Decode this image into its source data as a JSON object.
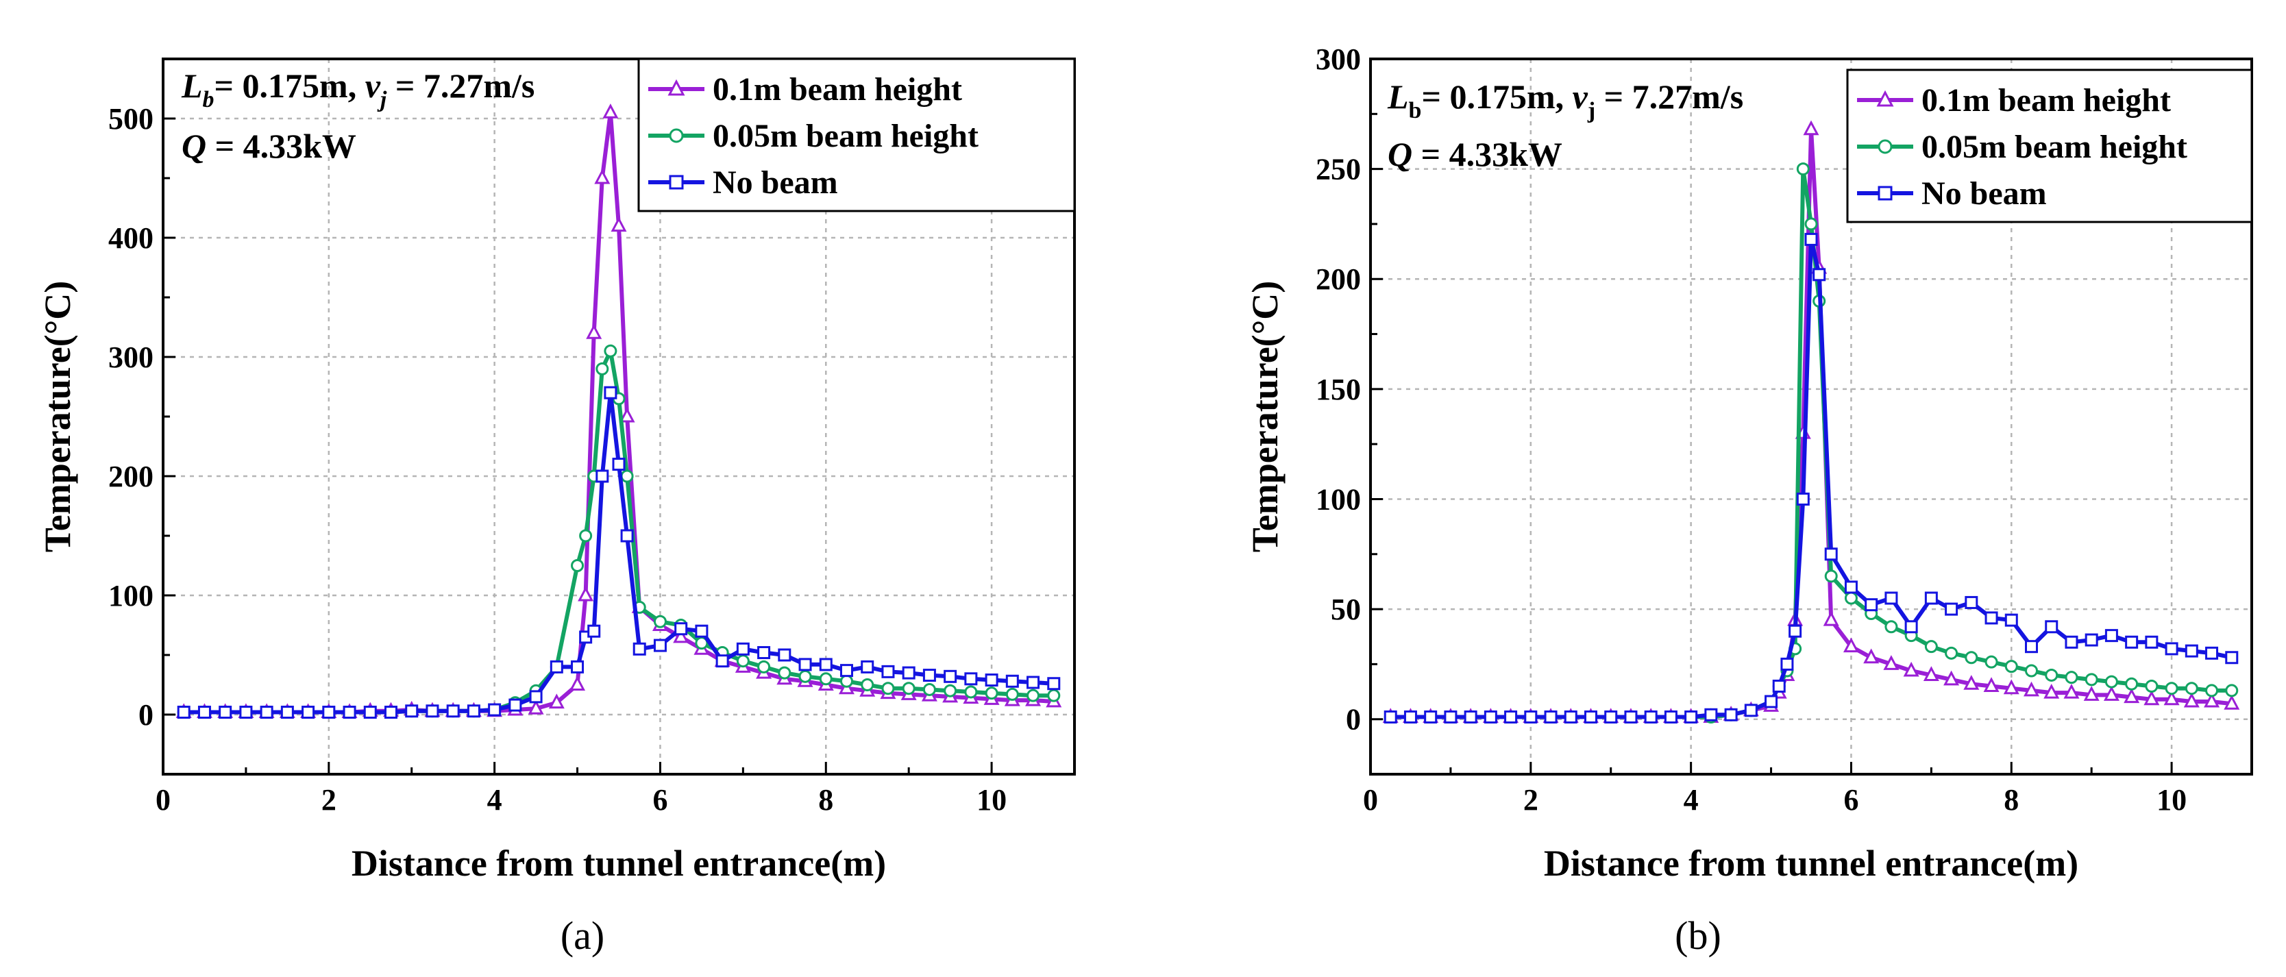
{
  "chart_data": [
    {
      "type": "line",
      "caption": "(a)",
      "xlabel": "Distance from tunnel entrance(m)",
      "ylabel": "Temperature(°C)",
      "xlim": [
        0,
        11
      ],
      "ylim": [
        -50,
        550
      ],
      "xticks": [
        0,
        2,
        4,
        6,
        8,
        10
      ],
      "yticks": [
        0,
        100,
        200,
        300,
        400,
        500
      ],
      "grid": true,
      "legend_position": "top-right",
      "annotation_line1": {
        "L": "L",
        "sub_b": "b",
        "eq1": "= 0.175m, ",
        "v": "v",
        "sub_j": "j",
        "eq2": " = 7.27m/s"
      },
      "annotation_line2": {
        "Q": "Q",
        "eq": " = 4.33kW"
      },
      "x": [
        0.25,
        0.5,
        0.75,
        1.0,
        1.25,
        1.5,
        1.75,
        2.0,
        2.25,
        2.5,
        2.75,
        3.0,
        3.25,
        3.5,
        3.75,
        4.0,
        4.25,
        4.5,
        4.75,
        5.0,
        5.1,
        5.2,
        5.3,
        5.4,
        5.5,
        5.6,
        5.75,
        6.0,
        6.25,
        6.5,
        6.75,
        7.0,
        7.25,
        7.5,
        7.75,
        8.0,
        8.25,
        8.5,
        8.75,
        9.0,
        9.25,
        9.5,
        9.75,
        10.0,
        10.25,
        10.5,
        10.75
      ],
      "series": [
        {
          "name": "0.1m beam height",
          "color": "#9A1FD6",
          "marker": "triangle",
          "values": [
            2,
            2,
            2,
            2,
            2,
            2,
            2,
            2,
            2,
            3,
            3,
            4,
            3,
            3,
            3,
            3,
            4,
            5,
            10,
            25,
            100,
            320,
            450,
            505,
            410,
            250,
            90,
            75,
            65,
            55,
            45,
            40,
            35,
            30,
            28,
            25,
            22,
            20,
            18,
            17,
            16,
            15,
            14,
            13,
            12,
            12,
            11
          ]
        },
        {
          "name": "0.05m beam height",
          "color": "#13A463",
          "marker": "circle",
          "values": [
            2,
            2,
            2,
            2,
            2,
            2,
            2,
            2,
            2,
            2,
            2,
            3,
            3,
            3,
            3,
            4,
            10,
            20,
            40,
            125,
            150,
            200,
            290,
            305,
            265,
            200,
            90,
            78,
            75,
            60,
            52,
            45,
            40,
            35,
            32,
            30,
            28,
            25,
            22,
            22,
            21,
            20,
            19,
            18,
            17,
            16,
            16
          ]
        },
        {
          "name": "No beam",
          "color": "#1414E0",
          "marker": "square",
          "values": [
            2,
            2,
            2,
            2,
            2,
            2,
            2,
            2,
            2,
            2,
            2,
            3,
            3,
            3,
            3,
            4,
            8,
            15,
            40,
            40,
            65,
            70,
            200,
            270,
            210,
            150,
            55,
            58,
            72,
            70,
            45,
            55,
            52,
            50,
            42,
            42,
            37,
            40,
            36,
            35,
            33,
            32,
            30,
            29,
            28,
            27,
            26
          ]
        }
      ]
    },
    {
      "type": "line",
      "caption": "(b)",
      "xlabel": "Distance from tunnel entrance(m)",
      "ylabel": "Temperature(°C)",
      "xlim": [
        0,
        11
      ],
      "ylim": [
        -25,
        300
      ],
      "xticks": [
        0,
        2,
        4,
        6,
        8,
        10
      ],
      "yticks": [
        0,
        50,
        100,
        150,
        200,
        250,
        300
      ],
      "grid": true,
      "legend_position": "top-right",
      "annotation_line1": {
        "L": "L",
        "sub_b": "b",
        "eq1": "= 0.175m, ",
        "v": "v",
        "sub_j": "j",
        "eq2": " = 7.27m/s"
      },
      "annotation_line2": {
        "Q": "Q",
        "eq": " = 4.33kW"
      },
      "x": [
        0.25,
        0.5,
        0.75,
        1.0,
        1.25,
        1.5,
        1.75,
        2.0,
        2.25,
        2.5,
        2.75,
        3.0,
        3.25,
        3.5,
        3.75,
        4.0,
        4.25,
        4.5,
        4.75,
        5.0,
        5.1,
        5.2,
        5.3,
        5.4,
        5.5,
        5.6,
        5.75,
        6.0,
        6.25,
        6.5,
        6.75,
        7.0,
        7.25,
        7.5,
        7.75,
        8.0,
        8.25,
        8.5,
        8.75,
        9.0,
        9.25,
        9.5,
        9.75,
        10.0,
        10.25,
        10.5,
        10.75
      ],
      "series": [
        {
          "name": "0.1m beam height",
          "color": "#9A1FD6",
          "marker": "triangle",
          "values": [
            1,
            1,
            1,
            1,
            1,
            1,
            1,
            1,
            1,
            1,
            1,
            1,
            1,
            1,
            1,
            1,
            1,
            2,
            4,
            6,
            12,
            20,
            45,
            130,
            268,
            205,
            45,
            33,
            28,
            25,
            22,
            20,
            18,
            16,
            15,
            14,
            13,
            12,
            12,
            11,
            11,
            10,
            9,
            9,
            8,
            8,
            7
          ]
        },
        {
          "name": "0.05m beam height",
          "color": "#13A463",
          "marker": "circle",
          "values": [
            1,
            1,
            1,
            1,
            1,
            1,
            1,
            1,
            1,
            1,
            1,
            1,
            1,
            1,
            1,
            1,
            1,
            2,
            4,
            8,
            15,
            22,
            32,
            250,
            225,
            190,
            65,
            55,
            48,
            42,
            38,
            33,
            30,
            28,
            26,
            24,
            22,
            20,
            19,
            18,
            17,
            16,
            15,
            14,
            14,
            13,
            13
          ]
        },
        {
          "name": "No beam",
          "color": "#1414E0",
          "marker": "square",
          "values": [
            1,
            1,
            1,
            1,
            1,
            1,
            1,
            1,
            1,
            1,
            1,
            1,
            1,
            1,
            1,
            1,
            2,
            2,
            4,
            8,
            15,
            25,
            40,
            100,
            218,
            202,
            75,
            60,
            52,
            55,
            42,
            55,
            50,
            53,
            46,
            45,
            33,
            42,
            35,
            36,
            38,
            35,
            35,
            32,
            31,
            30,
            28
          ]
        }
      ]
    }
  ]
}
